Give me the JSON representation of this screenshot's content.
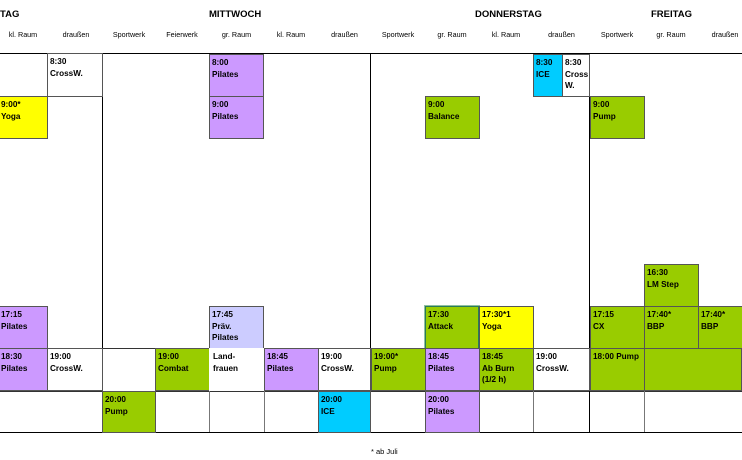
{
  "days": {
    "tuesday_partial": "TAG",
    "wednesday": "MITTWOCH",
    "thursday": "DONNERSTAG",
    "friday": "FREITAG"
  },
  "columns": {
    "tue_kl": "kl. Raum",
    "tue_draussen": "draußen",
    "wed_sportwerk": "Sportwerk",
    "wed_feierwerk": "Feierwerk",
    "wed_gr": "gr. Raum",
    "wed_kl": "kl. Raum",
    "wed_draussen": "draußen",
    "thu_sportwerk": "Sportwerk",
    "thu_gr": "gr. Raum",
    "thu_kl": "kl. Raum",
    "thu_draussen": "draußen",
    "fri_sportwerk": "Sportwerk",
    "fri_gr": "gr. Raum",
    "fri_draussen": "draußen"
  },
  "events": [
    {
      "id": "tue-crossw-830",
      "text": "8:30\nCrossW.",
      "color": "#ffffff"
    },
    {
      "id": "tue-yoga-900",
      "text": "9:00*\nYoga",
      "color": "#ffff00"
    },
    {
      "id": "tue-pilates-1715",
      "text": "17:15\nPilates",
      "color": "#cc99ff"
    },
    {
      "id": "tue-pilates-1830",
      "text": "18:30\nPilates",
      "color": "#cc99ff"
    },
    {
      "id": "tue-crossw-1900",
      "text": "19:00\nCrossW.",
      "color": "#ffffff"
    },
    {
      "id": "wed-pilates-800",
      "text": "8:00\nPilates",
      "color": "#cc99ff"
    },
    {
      "id": "wed-pilates-900",
      "text": "9:00\nPilates",
      "color": "#cc99ff"
    },
    {
      "id": "wed-praev-pilates-1745",
      "text": "17:45\nPräv.\nPilates",
      "color": "#ccccff"
    },
    {
      "id": "wed-combat-1900",
      "text": "19:00\nCombat",
      "color": "#99cc00"
    },
    {
      "id": "wed-landfrauen",
      "text": "Land-\nfrauen",
      "color": "#ffffff"
    },
    {
      "id": "wed-pilates-1845",
      "text": "18:45\nPilates",
      "color": "#cc99ff"
    },
    {
      "id": "wed-crossw-1900",
      "text": "19:00\nCrossW.",
      "color": "#ffffff"
    },
    {
      "id": "wed-pump-2000",
      "text": "20:00\nPump",
      "color": "#99cc00"
    },
    {
      "id": "wed-ice-2000",
      "text": "20:00\nICE",
      "color": "#00ccff"
    },
    {
      "id": "thu-ice-830",
      "text": "8:30\nICE",
      "color": "#00ccff"
    },
    {
      "id": "thu-crossw-830",
      "text": "8:30\nCross\nW.",
      "color": "#ffffff"
    },
    {
      "id": "thu-balance-900",
      "text": "9:00\nBalance",
      "color": "#99cc00"
    },
    {
      "id": "thu-attack-1730",
      "text": "17:30\nAttack",
      "color": "#99cc00"
    },
    {
      "id": "thu-yoga-1730",
      "text": "17:30*1\nYoga",
      "color": "#ffff00"
    },
    {
      "id": "thu-pump-1900",
      "text": "19:00*\nPump",
      "color": "#99cc00"
    },
    {
      "id": "thu-pilates-1845",
      "text": "18:45\nPilates",
      "color": "#cc99ff"
    },
    {
      "id": "thu-abburn-1845",
      "text": "18:45\nAb Burn\n(1/2 h)",
      "color": "#99cc00"
    },
    {
      "id": "thu-crossw-1900",
      "text": "19:00\nCrossW.",
      "color": "#ffffff"
    },
    {
      "id": "thu-pilates-2000",
      "text": "20:00\nPilates",
      "color": "#cc99ff"
    },
    {
      "id": "fri-pump-900",
      "text": "9:00\nPump",
      "color": "#99cc00"
    },
    {
      "id": "fri-lmstep-1630",
      "text": "16:30\nLM Step",
      "color": "#99cc00"
    },
    {
      "id": "fri-cx-1715",
      "text": "17:15\nCX",
      "color": "#99cc00"
    },
    {
      "id": "fri-bbp-1740a",
      "text": "17:40*\nBBP",
      "color": "#99cc00"
    },
    {
      "id": "fri-bbp-1740b",
      "text": "17:40*\nBBP",
      "color": "#99cc00"
    },
    {
      "id": "fri-pump-1800",
      "text": "18:00 Pump",
      "color": "#99cc00"
    }
  ],
  "footnote": "* ab Juli"
}
